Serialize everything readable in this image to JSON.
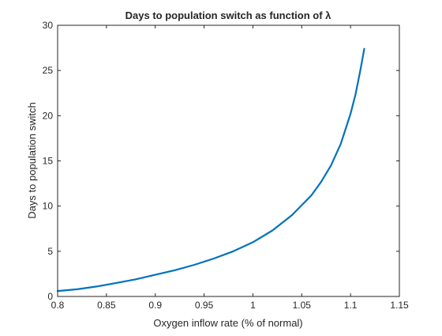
{
  "chart_data": {
    "type": "line",
    "title": "Days to population switch as function of λ",
    "xlabel": "Oxygen inflow rate (% of normal)",
    "ylabel": "Days to population switch",
    "xlim": [
      0.8,
      1.15
    ],
    "ylim": [
      0,
      30
    ],
    "x_ticks": [
      "0.8",
      "0.85",
      "0.9",
      "0.95",
      "1",
      "1.05",
      "1.1",
      "1.15"
    ],
    "y_ticks": [
      "0",
      "5",
      "10",
      "15",
      "20",
      "25",
      "30"
    ],
    "grid": false,
    "box": true,
    "series": [
      {
        "color": "#0072BD",
        "x": [
          0.8,
          0.82,
          0.84,
          0.86,
          0.88,
          0.9,
          0.92,
          0.94,
          0.96,
          0.98,
          1.0,
          1.02,
          1.04,
          1.06,
          1.07,
          1.08,
          1.09,
          1.1,
          1.105,
          1.11,
          1.114
        ],
        "y": [
          0.6,
          0.8,
          1.1,
          1.5,
          1.9,
          2.4,
          2.9,
          3.5,
          4.2,
          5.0,
          6.0,
          7.3,
          9.0,
          11.2,
          12.7,
          14.5,
          16.9,
          20.2,
          22.3,
          25.0,
          27.4
        ]
      }
    ]
  }
}
